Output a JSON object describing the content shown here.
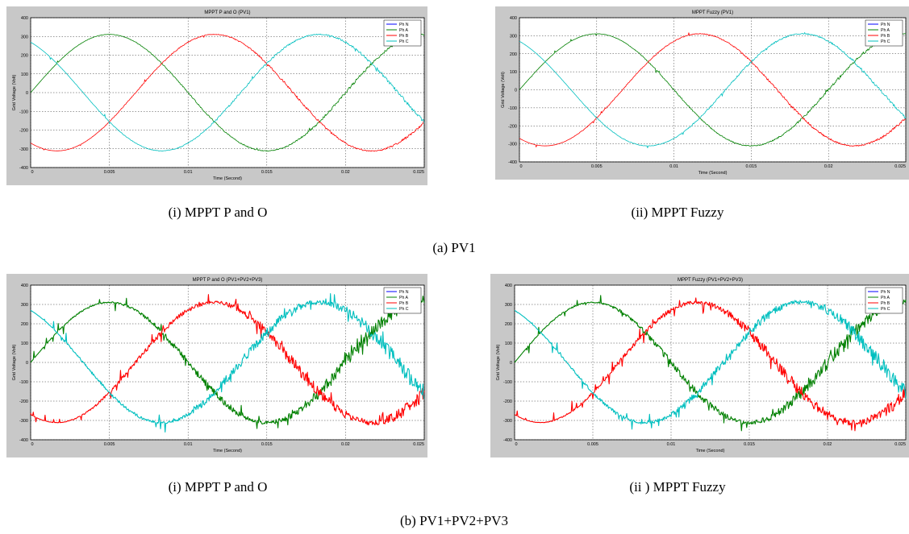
{
  "figure": {
    "group_a_caption": "(a) PV1",
    "group_b_caption": "(b) PV1+PV2+PV3"
  },
  "panels": [
    {
      "caption": "(i) MPPT P and O"
    },
    {
      "caption": "(ii) MPPT Fuzzy"
    },
    {
      "caption": "(i) MPPT P and O"
    },
    {
      "caption": "(ii ) MPPT Fuzzy"
    }
  ],
  "colors": {
    "Ph N": "#0000ff",
    "Ph A": "#008000",
    "Ph B": "#ff0000",
    "Ph C": "#00bfbf",
    "frame": "#c8c8c8",
    "axes_bg": "#ffffff"
  },
  "chart_data": [
    {
      "type": "line",
      "title": "MPPT P and O (PV1)",
      "xlabel": "Time (Second)",
      "ylabel": "Grid Voltage (Volt)",
      "xlim": [
        0,
        0.025
      ],
      "ylim": [
        -400,
        400
      ],
      "xticks": [
        0,
        0.005,
        0.01,
        0.015,
        0.02,
        0.025
      ],
      "xtick_labels": [
        "0",
        "0.005",
        "0.01",
        "0.015",
        "0.02",
        "0.025"
      ],
      "yticks": [
        400,
        300,
        200,
        100,
        0,
        -100,
        -200,
        -300,
        -400
      ],
      "ytick_labels": [
        "400",
        "300",
        "200",
        "100",
        "0",
        "-100",
        "-200",
        "-300",
        "-400"
      ],
      "grid": true,
      "legend": "top-right",
      "amplitude": 311,
      "frequency_hz": 50,
      "series": [
        {
          "name": "Ph N",
          "phase_deg": 0,
          "visible": false
        },
        {
          "name": "Ph A",
          "phase_deg": 0
        },
        {
          "name": "Ph B",
          "phase_deg": -120
        },
        {
          "name": "Ph C",
          "phase_deg": 120
        }
      ],
      "noise_level": 1
    },
    {
      "type": "line",
      "title": "MPPT Fuzzy (PV1)",
      "xlabel": "Time (Second)",
      "ylabel": "Grid Voltage (Volt)",
      "xlim": [
        0,
        0.025
      ],
      "ylim": [
        -400,
        400
      ],
      "xticks": [
        0,
        0.005,
        0.01,
        0.015,
        0.02,
        0.025
      ],
      "xtick_labels": [
        "0",
        "0.005",
        "0.01",
        "0.015",
        "0.02",
        "0.025"
      ],
      "yticks": [
        400,
        300,
        200,
        100,
        0,
        -100,
        -200,
        -300,
        -400
      ],
      "ytick_labels": [
        "400",
        "300",
        "200",
        "100",
        "0",
        "-100",
        "-200",
        "-300",
        "-400"
      ],
      "grid": true,
      "legend": "top-right",
      "amplitude": 311,
      "frequency_hz": 50,
      "series": [
        {
          "name": "Ph N",
          "phase_deg": 0,
          "visible": false
        },
        {
          "name": "Ph A",
          "phase_deg": 0
        },
        {
          "name": "Ph B",
          "phase_deg": -120
        },
        {
          "name": "Ph C",
          "phase_deg": 120
        }
      ],
      "noise_level": 1
    },
    {
      "type": "line",
      "title": "MPPT P and O (PV1+PV2+PV3)",
      "xlabel": "Time (Second)",
      "ylabel": "Grid Voltage (Volt)",
      "xlim": [
        0,
        0.025
      ],
      "ylim": [
        -400,
        400
      ],
      "xticks": [
        0,
        0.005,
        0.01,
        0.015,
        0.02,
        0.025
      ],
      "xtick_labels": [
        "0",
        "0.005",
        "0.01",
        "0.015",
        "0.02",
        "0.025"
      ],
      "yticks": [
        400,
        300,
        200,
        100,
        0,
        -100,
        -200,
        -300,
        -400
      ],
      "ytick_labels": [
        "400",
        "300",
        "200",
        "100",
        "0",
        "-100",
        "-200",
        "-300",
        "-400"
      ],
      "grid": true,
      "legend": "top-right",
      "amplitude": 311,
      "frequency_hz": 50,
      "series": [
        {
          "name": "Ph N",
          "phase_deg": 0,
          "visible": false
        },
        {
          "name": "Ph A",
          "phase_deg": 0
        },
        {
          "name": "Ph B",
          "phase_deg": -120
        },
        {
          "name": "Ph C",
          "phase_deg": 120
        }
      ],
      "noise_level": 3
    },
    {
      "type": "line",
      "title": "MPPT Fuzzy (PV1+PV2+PV3)",
      "xlabel": "Time (Second)",
      "ylabel": "Grid Voltage (Volt)",
      "xlim": [
        0,
        0.025
      ],
      "ylim": [
        -400,
        400
      ],
      "xticks": [
        0,
        0.005,
        0.01,
        0.015,
        0.02,
        0.025
      ],
      "xtick_labels": [
        "0",
        "0.005",
        "0.01",
        "0.015",
        "0.02",
        "0.025"
      ],
      "yticks": [
        400,
        300,
        200,
        100,
        0,
        -100,
        -200,
        -300,
        -400
      ],
      "ytick_labels": [
        "400",
        "300",
        "200",
        "100",
        "0",
        "-100",
        "-200",
        "-300",
        "-400"
      ],
      "grid": true,
      "legend": "top-right",
      "amplitude": 311,
      "frequency_hz": 50,
      "series": [
        {
          "name": "Ph N",
          "phase_deg": 0,
          "visible": false
        },
        {
          "name": "Ph A",
          "phase_deg": 0
        },
        {
          "name": "Ph B",
          "phase_deg": -120
        },
        {
          "name": "Ph C",
          "phase_deg": 120
        }
      ],
      "noise_level": 3
    }
  ]
}
